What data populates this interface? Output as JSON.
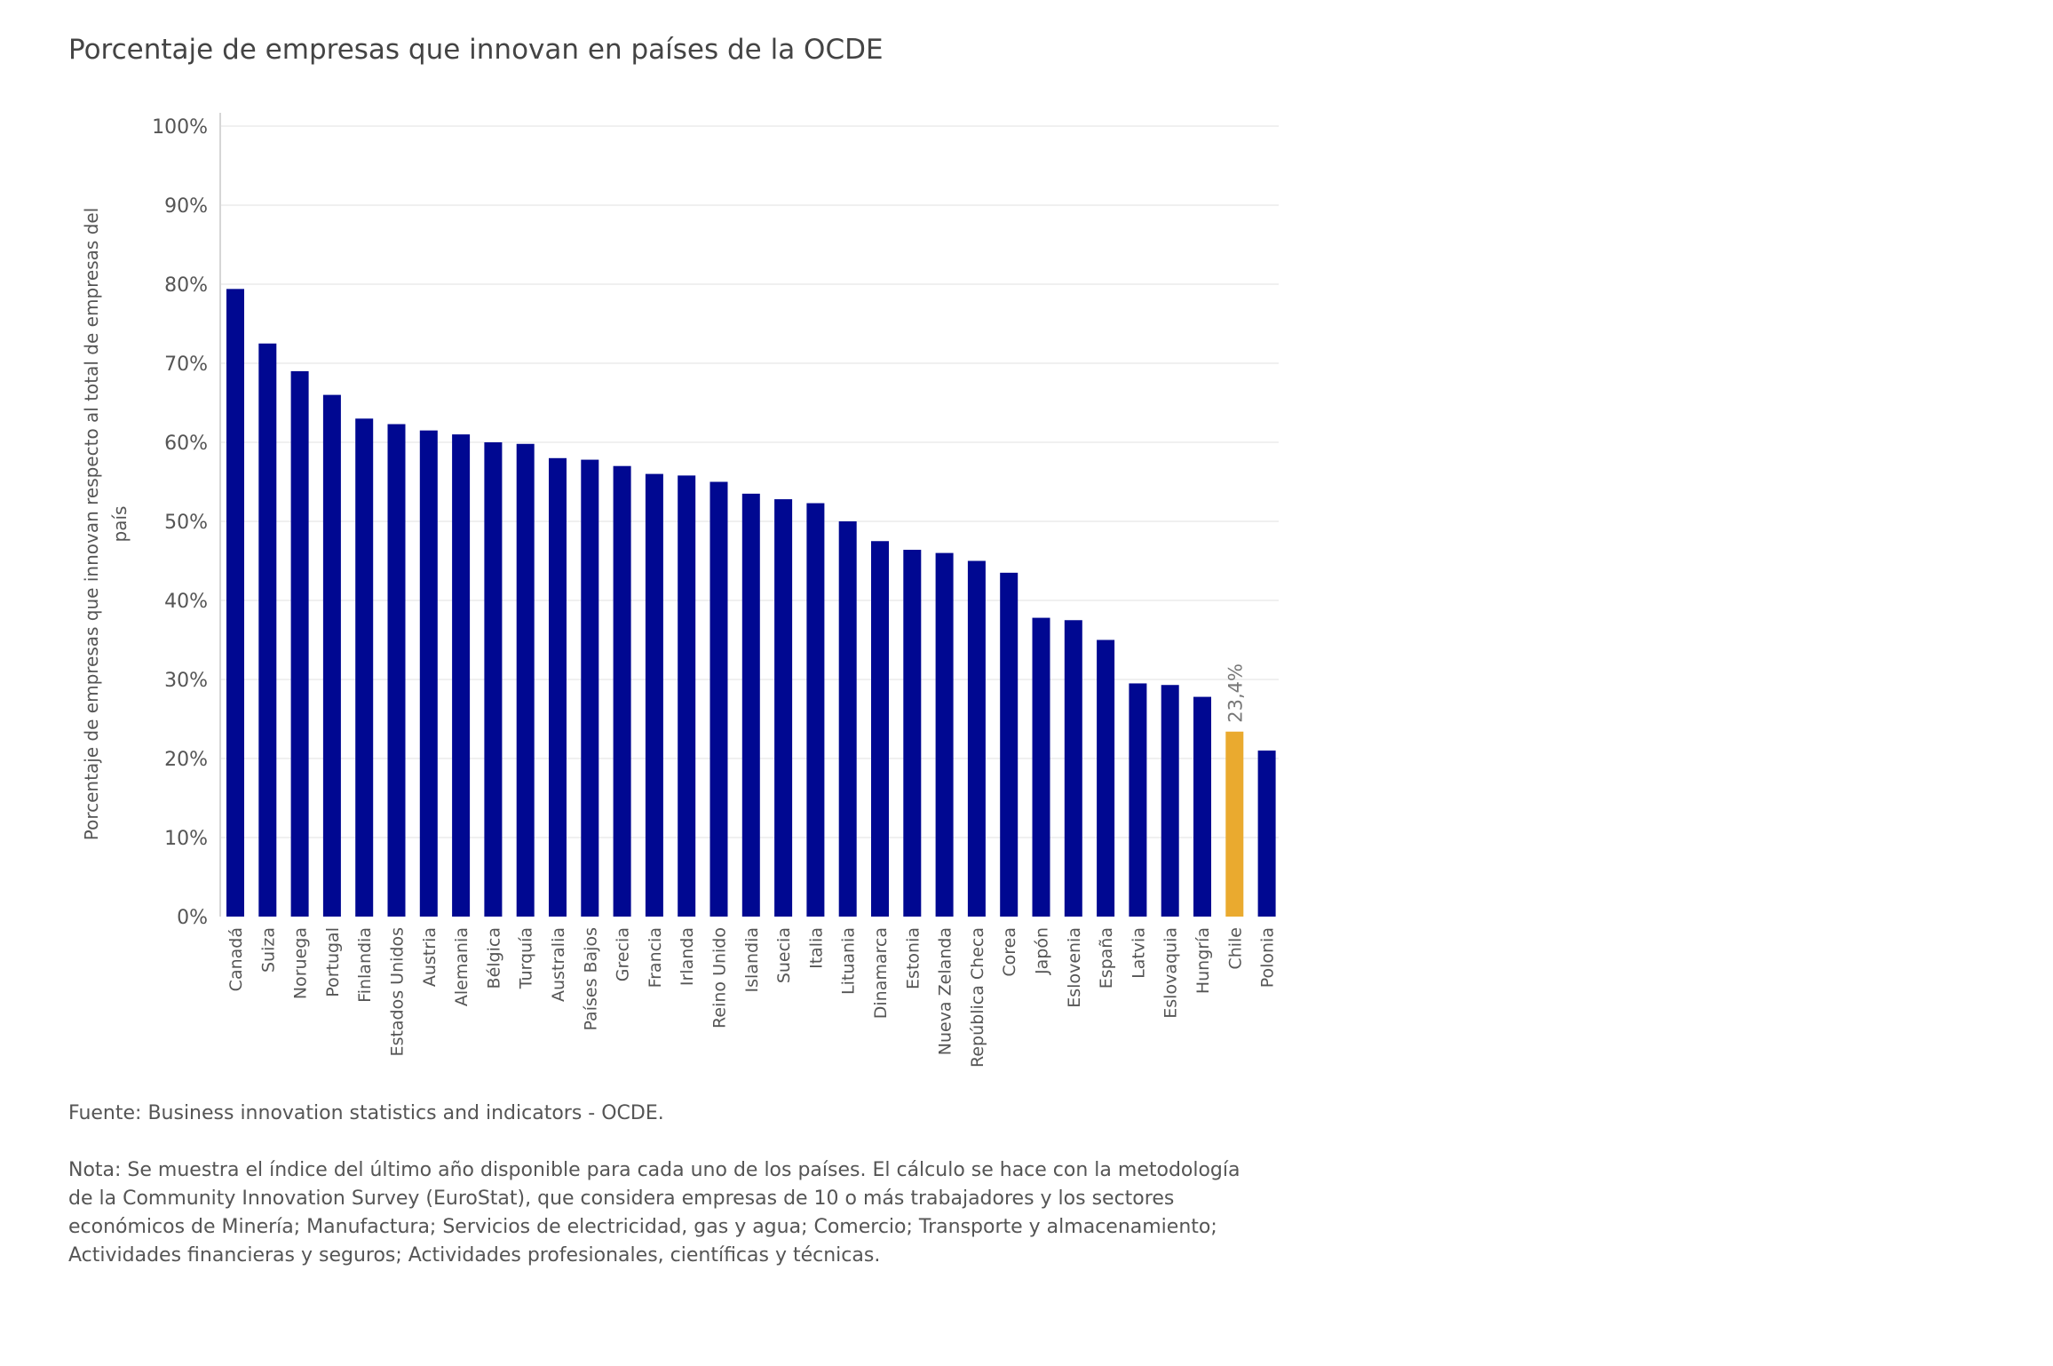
{
  "chart_data": {
    "type": "bar",
    "title": "Porcentaje de empresas que innovan en países de la OCDE",
    "xlabel": "",
    "ylabel": "Porcentaje de empresas que innovan respecto al total de empresas del país",
    "ylim": [
      0,
      100
    ],
    "y_ticks": [
      {
        "value": 0,
        "label": "0%"
      },
      {
        "value": 10,
        "label": "10%"
      },
      {
        "value": 20,
        "label": "20%"
      },
      {
        "value": 30,
        "label": "30%"
      },
      {
        "value": 40,
        "label": "40%"
      },
      {
        "value": 50,
        "label": "50%"
      },
      {
        "value": 60,
        "label": "60%"
      },
      {
        "value": 70,
        "label": "70%"
      },
      {
        "value": 80,
        "label": "80%"
      },
      {
        "value": 90,
        "label": "90%"
      },
      {
        "value": 100,
        "label": "100%"
      }
    ],
    "grid": true,
    "categories": [
      "Canadá",
      "Suiza",
      "Noruega",
      "Portugal",
      "Finlandia",
      "Estados Unidos",
      "Austria",
      "Alemania",
      "Bélgica",
      "Turquía",
      "Australia",
      "Países Bajos",
      "Grecia",
      "Francia",
      "Irlanda",
      "Reino Unido",
      "Islandia",
      "Suecia",
      "Italia",
      "Lituania",
      "Dinamarca",
      "Estonia",
      "Nueva Zelanda",
      "República Checa",
      "Corea",
      "Japón",
      "Eslovenia",
      "España",
      "Latvia",
      "Eslovaquia",
      "Hungría",
      "Chile",
      "Polonia"
    ],
    "values": [
      79.4,
      72.5,
      69.0,
      66.0,
      63.0,
      62.3,
      61.5,
      61.0,
      60.0,
      59.8,
      58.0,
      57.8,
      57.0,
      56.0,
      55.8,
      55.0,
      53.5,
      52.8,
      52.3,
      50.0,
      47.5,
      46.4,
      46.0,
      45.0,
      43.5,
      37.8,
      37.5,
      35.0,
      29.5,
      29.3,
      27.8,
      23.4,
      21.0
    ],
    "highlight_index": 31,
    "highlight_label": "23,4%",
    "colors": {
      "bar": "#000891",
      "highlight": "#eaaa2f",
      "grid": "#ececec",
      "text": "#555555"
    }
  },
  "footnotes": {
    "source": "Fuente: Business innovation statistics and indicators - OCDE.",
    "note": "Nota: Se muestra el índice del último año disponible para cada uno de los países. El cálculo se hace con la metodología de la Community Innovation Survey (EuroStat), que considera empresas de 10 o más trabajadores y los sectores económicos de Minería; Manufactura; Servicios de electricidad, gas y agua; Comercio; Transporte y almacenamiento; Actividades financieras y seguros; Actividades profesionales, científicas y técnicas."
  }
}
